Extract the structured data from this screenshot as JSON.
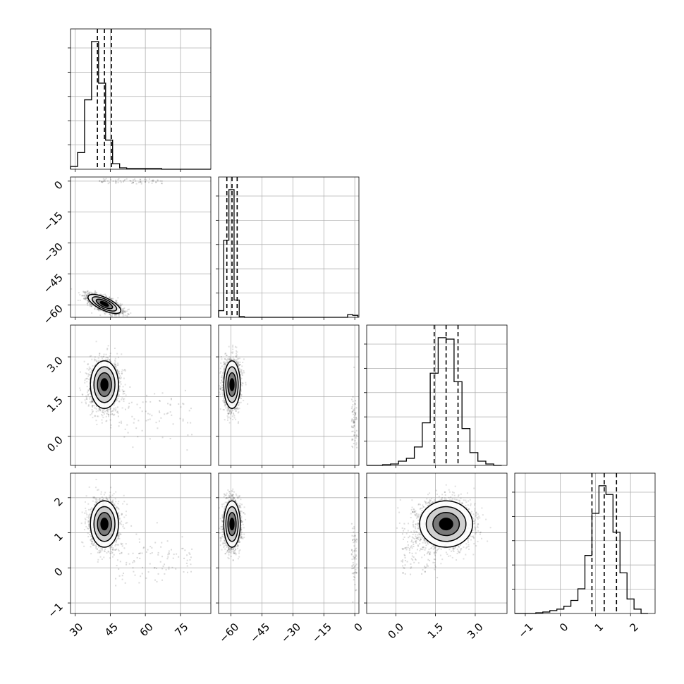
{
  "chart_data": {
    "type": "corner",
    "parameters": [
      "",
      "",
      "",
      ""
    ],
    "quantile_lines": [
      0.16,
      0.5,
      0.84
    ],
    "grid": true,
    "colors": {
      "ink": "#000000",
      "grid": "#b0b0b0",
      "points": "#000000",
      "fill_inner": "#000000",
      "fill_mid": "#7a7a7a",
      "fill_outer": "#cfcfcf"
    },
    "variables": [
      {
        "id": "p0",
        "range": [
          28,
          88
        ],
        "ticks": [
          30,
          45,
          60,
          75
        ],
        "tick_labels": [
          "30",
          "45",
          "60",
          "75"
        ]
      },
      {
        "id": "p1",
        "range": [
          -66,
          2
        ],
        "ticks": [
          -60,
          -45,
          -30,
          -15,
          0
        ],
        "tick_labels": [
          "−60",
          "−45",
          "−30",
          "−15",
          "0"
        ]
      },
      {
        "id": "p2",
        "range": [
          -1.1,
          4.2
        ],
        "ticks": [
          0.0,
          1.5,
          3.0
        ],
        "tick_labels": [
          "0.0",
          "1.5",
          "3.0"
        ]
      },
      {
        "id": "p3",
        "range": [
          -1.3,
          2.7
        ],
        "ticks": [
          -1,
          0,
          1,
          2
        ],
        "tick_labels": [
          "−1",
          "0",
          "1",
          "2"
        ]
      }
    ],
    "histograms": [
      {
        "id": "hist-0",
        "edges": [
          28,
          31,
          34,
          37,
          40,
          43,
          46,
          49,
          52,
          55,
          58,
          61,
          64,
          67,
          70,
          73,
          76,
          79,
          82,
          85,
          88
        ],
        "counts": [
          0.02,
          0.12,
          0.5,
          0.92,
          0.62,
          0.21,
          0.04,
          0.01,
          0.005,
          0.005,
          0.005,
          0.005,
          0.005,
          0,
          0,
          0,
          0,
          0,
          0,
          0
        ],
        "quantiles": [
          39.5,
          42.5,
          45.5
        ]
      },
      {
        "id": "hist-1",
        "edges": [
          -66,
          -63.5,
          -61,
          -58.5,
          -56,
          -53.5,
          -51,
          -48.5,
          -46,
          -43.5,
          -41,
          -38.5,
          -36,
          -33.5,
          -31,
          -28.5,
          -26,
          -23.5,
          -21,
          -18.5,
          -16,
          -13.5,
          -11,
          -8.5,
          -6,
          -3.5,
          -1,
          1.5
        ],
        "counts": [
          0.05,
          0.58,
          0.96,
          0.13,
          0.005,
          0,
          0,
          0,
          0,
          0,
          0,
          0,
          0,
          0,
          0,
          0,
          0,
          0,
          0,
          0,
          0,
          0,
          0,
          0,
          0,
          0.02,
          0.015
        ],
        "quantiles": [
          -62,
          -59.5,
          -57
        ]
      },
      {
        "id": "hist-2",
        "edges": [
          -1.1,
          -0.8,
          -0.5,
          -0.2,
          0.1,
          0.4,
          0.7,
          1.0,
          1.3,
          1.6,
          1.9,
          2.2,
          2.5,
          2.8,
          3.1,
          3.4,
          3.7,
          4.0
        ],
        "counts": [
          0,
          0,
          0.005,
          0.01,
          0.03,
          0.05,
          0.13,
          0.3,
          0.65,
          0.9,
          0.89,
          0.59,
          0.26,
          0.09,
          0.03,
          0.01,
          0
        ],
        "quantiles": [
          1.45,
          1.9,
          2.35
        ]
      },
      {
        "id": "hist-3",
        "edges": [
          -1.3,
          -1.1,
          -0.9,
          -0.7,
          -0.5,
          -0.3,
          -0.1,
          0.1,
          0.3,
          0.5,
          0.7,
          0.9,
          1.1,
          1.3,
          1.5,
          1.7,
          1.9,
          2.1,
          2.3,
          2.5
        ],
        "counts": [
          0,
          0,
          0,
          0.005,
          0.01,
          0.02,
          0.03,
          0.05,
          0.09,
          0.17,
          0.4,
          0.69,
          0.88,
          0.82,
          0.56,
          0.28,
          0.1,
          0.03,
          0
        ],
        "quantiles": [
          0.9,
          1.25,
          1.6
        ]
      }
    ],
    "joint_distributions": [
      {
        "row": 1,
        "col": 0,
        "points": 2200,
        "main": {
          "mean": [
            42.5,
            -59.5
          ],
          "sd": [
            3.5,
            2.3
          ],
          "corr": -0.7
        },
        "tail": {
          "fraction": 0.03,
          "x_range": [
            40,
            70
          ],
          "y_mean": 0,
          "y_sd": 0.6
        }
      },
      {
        "row": 2,
        "col": 0,
        "points": 2200,
        "main": {
          "mean": [
            42.5,
            1.95
          ],
          "sd": [
            3.0,
            0.45
          ],
          "corr": 0
        },
        "tail": {
          "fraction": 0.04,
          "x_range": [
            45,
            80
          ],
          "y_mean": 0.9,
          "y_sd": 0.6
        }
      },
      {
        "row": 2,
        "col": 1,
        "points": 2200,
        "main": {
          "mean": [
            -59.5,
            1.95
          ],
          "sd": [
            2.0,
            0.45
          ],
          "corr": 0
        },
        "tail": {
          "fraction": 0.03,
          "x_range": [
            -1.5,
            1.0
          ],
          "y_mean": 0.5,
          "y_sd": 0.6
        }
      },
      {
        "row": 3,
        "col": 0,
        "points": 2200,
        "main": {
          "mean": [
            42.5,
            1.25
          ],
          "sd": [
            3.0,
            0.33
          ],
          "corr": 0
        },
        "tail": {
          "fraction": 0.05,
          "x_range": [
            45,
            80
          ],
          "y_mean": 0.3,
          "y_sd": 0.35
        }
      },
      {
        "row": 3,
        "col": 1,
        "points": 2200,
        "main": {
          "mean": [
            -59.5,
            1.25
          ],
          "sd": [
            2.0,
            0.33
          ],
          "corr": 0
        },
        "tail": {
          "fraction": 0.03,
          "x_range": [
            -1.5,
            1.0
          ],
          "y_mean": 0.2,
          "y_sd": 0.5
        }
      },
      {
        "row": 3,
        "col": 2,
        "points": 2600,
        "main": {
          "mean": [
            1.9,
            1.25
          ],
          "sd": [
            0.5,
            0.33
          ],
          "corr": 0
        },
        "tail": {
          "fraction": 0.06,
          "x_range": [
            0.2,
            1.6
          ],
          "y_mean": 0.6,
          "y_sd": 0.45
        }
      }
    ]
  }
}
